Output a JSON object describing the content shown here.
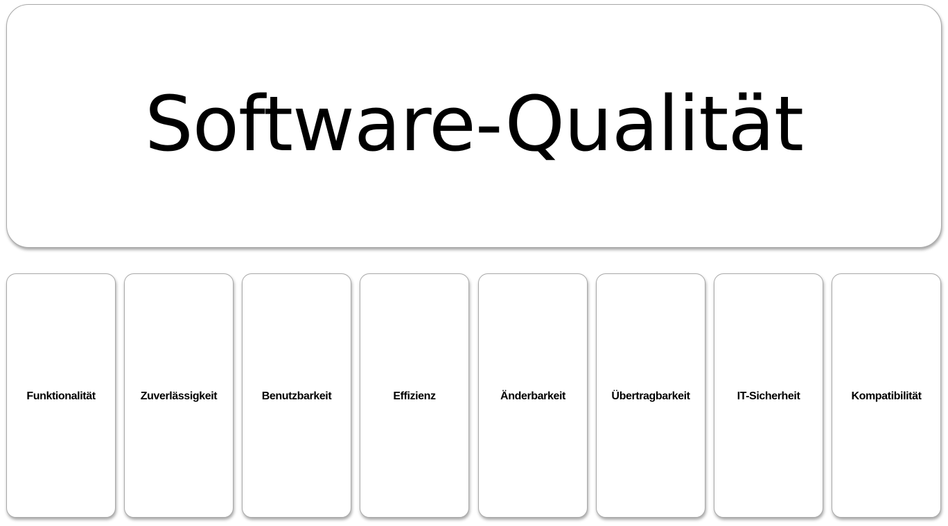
{
  "diagram": {
    "title": "Software-Qualität",
    "characteristics": [
      "Funktionalität",
      "Zuverlässigkeit",
      "Benutzbarkeit",
      "Effizienz",
      "Änderbarkeit",
      "Übertragbarkeit",
      "IT-Sicherheit",
      "Kompatibilität"
    ]
  }
}
